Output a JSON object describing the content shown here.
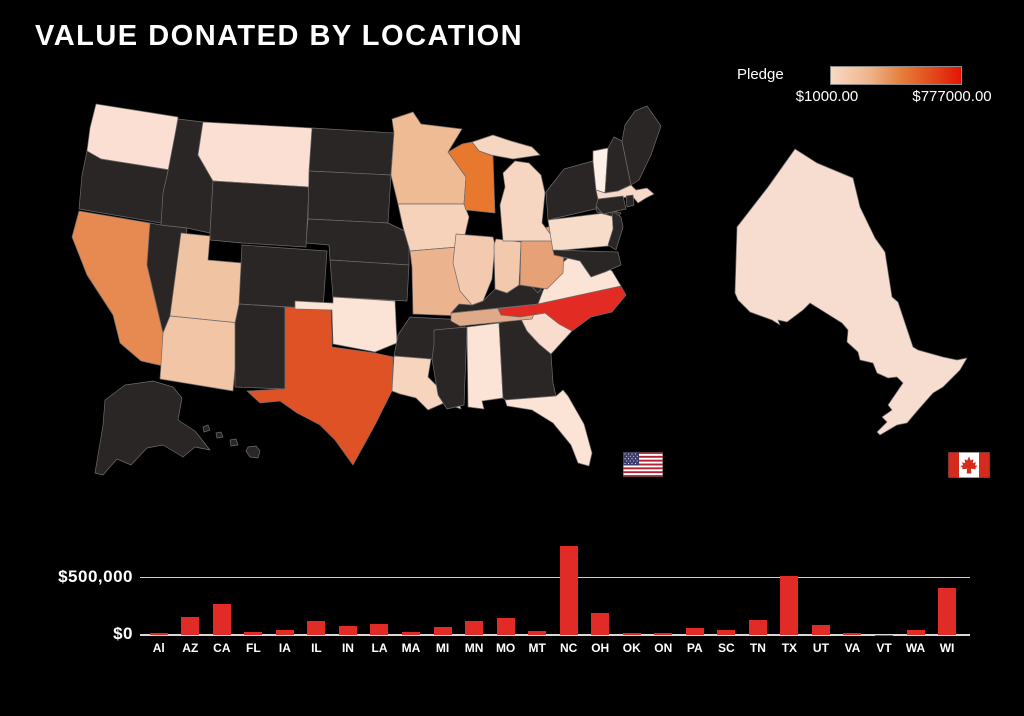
{
  "title": "VALUE DONATED BY LOCATION",
  "legend": {
    "label": "Pledge",
    "min_label": "$1000.00",
    "max_label": "$777000.00",
    "min_value": 1000,
    "max_value": 777000,
    "gradient_start": "#f7dbc7",
    "gradient_end": "#e41408"
  },
  "chart_data": {
    "type": "bar",
    "title": "Value donated by location (pledge $ by state/province)",
    "categories": [
      "Al",
      "AZ",
      "CA",
      "FL",
      "IA",
      "IL",
      "IN",
      "LA",
      "MA",
      "MI",
      "MN",
      "MO",
      "MT",
      "NC",
      "OH",
      "OK",
      "ON",
      "PA",
      "SC",
      "TN",
      "TX",
      "UT",
      "VA",
      "VT",
      "WA",
      "WI"
    ],
    "values": [
      18000,
      160000,
      275000,
      30000,
      45000,
      125000,
      75000,
      95000,
      30000,
      70000,
      120000,
      150000,
      35000,
      777000,
      195000,
      20000,
      18000,
      60000,
      45000,
      135000,
      520000,
      90000,
      20000,
      1000,
      40000,
      410000
    ],
    "xlabel": "",
    "ylabel": "",
    "y_tick_labels": [
      "$0",
      "$500,000"
    ],
    "y_tick_values": [
      0,
      500000
    ],
    "ylim": [
      0,
      800000
    ],
    "bar_color": "#e12b26",
    "axis_color": "#d9d9d9",
    "grid": "horizontal",
    "legend_position": "none"
  },
  "map": {
    "type": "choropleth",
    "no_data_color": "#2a2626",
    "stroke_color": "#6f6b6b",
    "fills": {
      "WA": "#fadfd2",
      "MT": "#fadfd2",
      "CA": "#e78a52",
      "UT": "#f0c3a2",
      "AZ": "#f1c5a5",
      "MN": "#eebb95",
      "IA": "#f6d2ba",
      "MO": "#ecb48e",
      "WI": "#e9782f",
      "IL": "#f3cab0",
      "IN": "#f2c9ad",
      "MI": "#f7d6c1",
      "OH": "#e6a276",
      "OK": "#fbe3d6",
      "TX": "#df5226",
      "LA": "#f7d4be",
      "AL": "#fbe3d6",
      "FL": "#fbe3d6",
      "TN": "#dfaa88",
      "NC": "#e22b22",
      "VA": "#fbe3d6",
      "SC": "#f9dcce",
      "PA": "#f8dcca",
      "MA": "#f8d9c8",
      "VT": "#fdf0e8",
      "ON": "#f7ddd0"
    }
  },
  "flags": {
    "us": "united-states-flag",
    "ca": "canada-flag"
  }
}
